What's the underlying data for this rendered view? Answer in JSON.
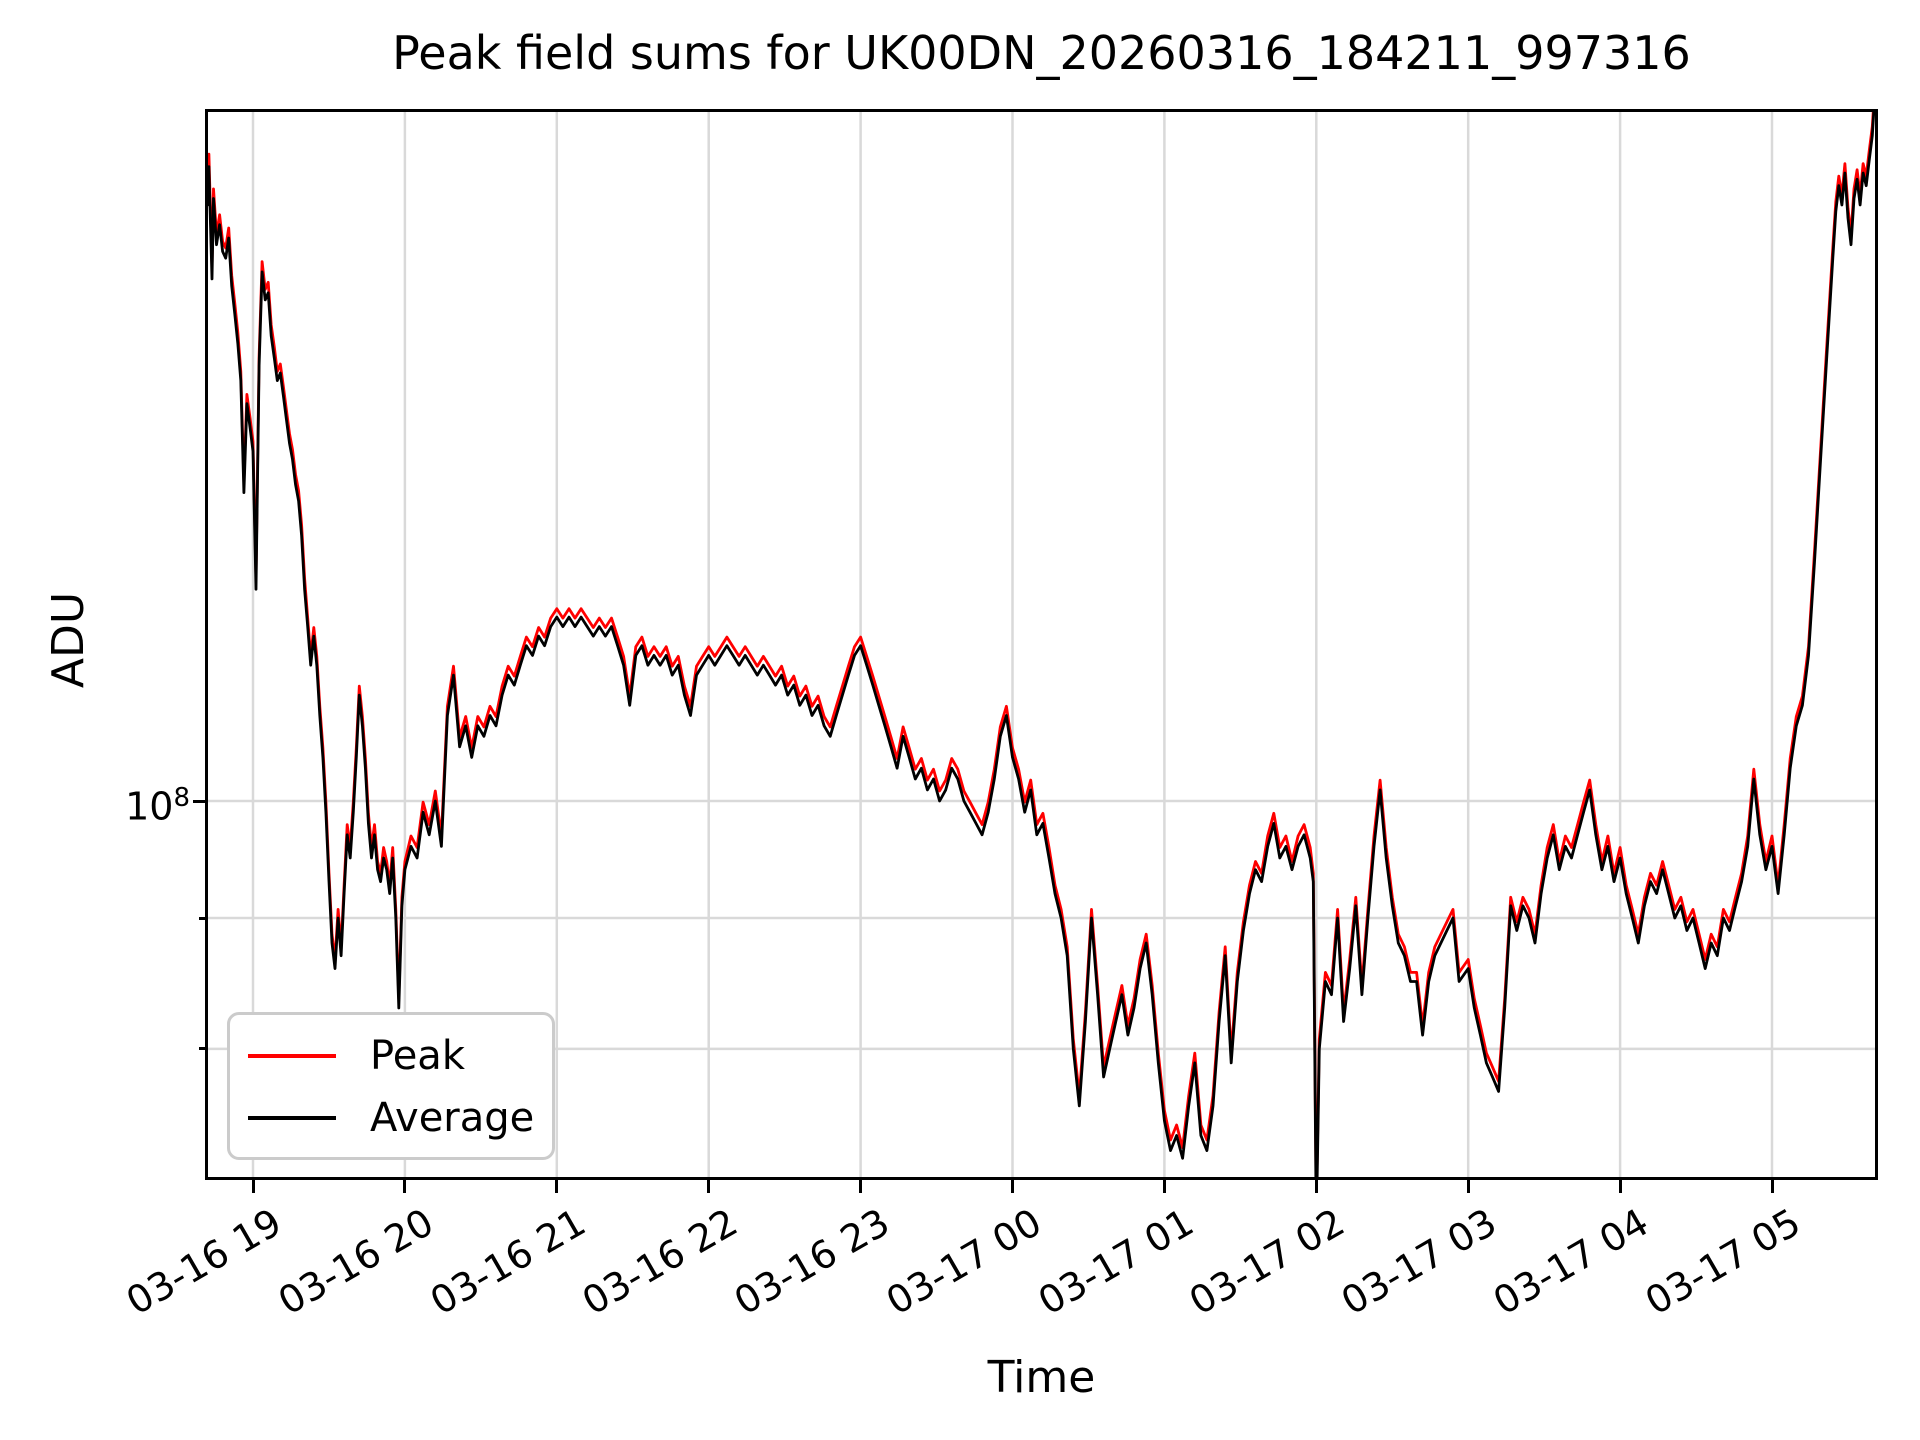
{
  "figure": {
    "title": "Peak field sums for UK00DN_20260316_184211_997316",
    "xlabel": "Time",
    "ylabel": "ADU",
    "y_tick": {
      "base": "10",
      "exponent": "8"
    },
    "background": "#ffffff",
    "grid_color": "#d9d9d9",
    "spine_color": "#000000"
  },
  "legend": {
    "entries": [
      {
        "label": "Peak",
        "color": "#ff0000"
      },
      {
        "label": "Average",
        "color": "#000000"
      }
    ]
  },
  "chart_data": {
    "type": "line",
    "title": "Peak field sums for UK00DN_20260316_184211_997316",
    "xlabel": "Time",
    "ylabel": "ADU",
    "y_scale": "log",
    "grid": true,
    "legend_position": "lower-left",
    "x_unit_note": "hours since 2026-03-16 00:00 (values >24 are 03-17)",
    "value_unit": "1e6 ADU",
    "xlim": [
      18.7,
      29.67
    ],
    "ylim": [
      71300000,
      186000000
    ],
    "x_ticks": [
      {
        "t": 19,
        "label": "03-16 19"
      },
      {
        "t": 20,
        "label": "03-16 20"
      },
      {
        "t": 21,
        "label": "03-16 21"
      },
      {
        "t": 22,
        "label": "03-16 22"
      },
      {
        "t": 23,
        "label": "03-16 23"
      },
      {
        "t": 24,
        "label": "03-17 00"
      },
      {
        "t": 25,
        "label": "03-17 01"
      },
      {
        "t": 26,
        "label": "03-17 02"
      },
      {
        "t": 27,
        "label": "03-17 03"
      },
      {
        "t": 28,
        "label": "03-17 04"
      },
      {
        "t": 29,
        "label": "03-17 05"
      }
    ],
    "y_ticks_major": [
      {
        "value": 100000000,
        "label": "10^8"
      }
    ],
    "y_ticks_minor": [
      90000000,
      80000000
    ],
    "x": [
      18.7,
      18.71,
      18.73,
      18.74,
      18.76,
      18.78,
      18.8,
      18.82,
      18.84,
      18.86,
      18.88,
      18.9,
      18.92,
      18.94,
      18.96,
      18.98,
      19.0,
      19.02,
      19.04,
      19.06,
      19.08,
      19.1,
      19.12,
      19.14,
      19.16,
      19.18,
      19.2,
      19.22,
      19.24,
      19.26,
      19.28,
      19.3,
      19.32,
      19.34,
      19.36,
      19.38,
      19.4,
      19.42,
      19.44,
      19.46,
      19.48,
      19.5,
      19.52,
      19.54,
      19.56,
      19.58,
      19.6,
      19.62,
      19.64,
      19.66,
      19.68,
      19.7,
      19.72,
      19.74,
      19.76,
      19.78,
      19.8,
      19.82,
      19.84,
      19.86,
      19.88,
      19.9,
      19.92,
      19.94,
      19.96,
      19.98,
      20.0,
      20.04,
      20.08,
      20.12,
      20.16,
      20.2,
      20.24,
      20.28,
      20.32,
      20.36,
      20.4,
      20.44,
      20.48,
      20.52,
      20.56,
      20.6,
      20.64,
      20.68,
      20.72,
      20.76,
      20.8,
      20.84,
      20.88,
      20.92,
      20.96,
      21.0,
      21.04,
      21.08,
      21.12,
      21.16,
      21.2,
      21.24,
      21.28,
      21.32,
      21.36,
      21.4,
      21.44,
      21.48,
      21.52,
      21.56,
      21.6,
      21.64,
      21.68,
      21.72,
      21.76,
      21.8,
      21.84,
      21.88,
      21.92,
      21.96,
      22.0,
      22.04,
      22.08,
      22.12,
      22.16,
      22.2,
      22.24,
      22.28,
      22.32,
      22.36,
      22.4,
      22.44,
      22.48,
      22.52,
      22.56,
      22.6,
      22.64,
      22.68,
      22.72,
      22.76,
      22.8,
      22.84,
      22.88,
      22.92,
      22.96,
      23.0,
      23.04,
      23.08,
      23.12,
      23.16,
      23.2,
      23.24,
      23.28,
      23.32,
      23.36,
      23.4,
      23.44,
      23.48,
      23.52,
      23.56,
      23.6,
      23.64,
      23.68,
      23.72,
      23.76,
      23.8,
      23.84,
      23.88,
      23.92,
      23.96,
      24.0,
      24.04,
      24.08,
      24.12,
      24.16,
      24.2,
      24.24,
      24.28,
      24.32,
      24.36,
      24.4,
      24.44,
      24.48,
      24.52,
      24.56,
      24.6,
      24.64,
      24.68,
      24.72,
      24.76,
      24.8,
      24.84,
      24.88,
      24.92,
      24.96,
      25.0,
      25.04,
      25.08,
      25.12,
      25.16,
      25.2,
      25.24,
      25.28,
      25.32,
      25.36,
      25.4,
      25.44,
      25.48,
      25.52,
      25.56,
      25.6,
      25.64,
      25.68,
      25.72,
      25.76,
      25.8,
      25.84,
      25.88,
      25.92,
      25.96,
      25.98,
      26.0,
      26.02,
      26.06,
      26.1,
      26.14,
      26.18,
      26.22,
      26.26,
      26.3,
      26.34,
      26.38,
      26.42,
      26.46,
      26.5,
      26.54,
      26.58,
      26.62,
      26.66,
      26.7,
      26.74,
      26.78,
      26.82,
      26.86,
      26.9,
      26.94,
      27.0,
      27.04,
      27.08,
      27.12,
      27.16,
      27.2,
      27.24,
      27.28,
      27.32,
      27.36,
      27.4,
      27.44,
      27.48,
      27.52,
      27.56,
      27.6,
      27.64,
      27.68,
      27.72,
      27.76,
      27.8,
      27.84,
      27.88,
      27.92,
      27.96,
      28.0,
      28.04,
      28.08,
      28.12,
      28.16,
      28.2,
      28.24,
      28.28,
      28.32,
      28.36,
      28.4,
      28.44,
      28.48,
      28.52,
      28.56,
      28.6,
      28.64,
      28.68,
      28.72,
      28.76,
      28.8,
      28.84,
      28.88,
      28.92,
      28.96,
      29.0,
      29.04,
      29.08,
      29.12,
      29.16,
      29.2,
      29.24,
      29.28,
      29.32,
      29.36,
      29.4,
      29.42,
      29.44,
      29.46,
      29.48,
      29.5,
      29.52,
      29.54,
      29.56,
      29.58,
      29.6,
      29.62,
      29.64,
      29.66,
      29.67
    ],
    "series": [
      {
        "name": "Peak",
        "color": "#ff0000",
        "values": [
          172.5,
          179,
          161.5,
          173.5,
          166.5,
          169.5,
          165.5,
          164.5,
          167.5,
          160.5,
          156.5,
          152.5,
          147.2,
          133.2,
          144.2,
          141.2,
          138.2,
          122.2,
          149.2,
          162.5,
          158.5,
          159.5,
          153.5,
          150.5,
          147.2,
          148.2,
          145.2,
          142.2,
          139.2,
          137.2,
          134.2,
          132.2,
          128.2,
          122.2,
          117.9,
          113.9,
          116.9,
          113.9,
          108.9,
          104.9,
          99.9,
          93.7,
          88.7,
          86.7,
          90.7,
          87.7,
          92.7,
          97.9,
          95.9,
          99.9,
          104.9,
          110.9,
          107.9,
          103.9,
          98.9,
          95.9,
          97.9,
          94.7,
          93.7,
          95.9,
          94.7,
          92.7,
          95.9,
          90.7,
          83.7,
          91.7,
          94.7,
          96.9,
          95.9,
          99.9,
          97.9,
          100.9,
          96.9,
          108.9,
          112.9,
          105.9,
          107.9,
          104.9,
          107.9,
          106.9,
          108.9,
          107.9,
          110.9,
          112.9,
          111.9,
          113.9,
          115.9,
          114.9,
          116.9,
          115.9,
          117.9,
          118.9,
          117.9,
          118.9,
          117.9,
          118.9,
          117.9,
          116.9,
          117.9,
          116.9,
          117.9,
          115.9,
          113.9,
          109.9,
          114.9,
          115.9,
          113.9,
          114.9,
          113.9,
          114.9,
          112.9,
          113.9,
          110.9,
          108.9,
          112.9,
          113.9,
          114.9,
          113.9,
          114.9,
          115.9,
          114.9,
          113.9,
          114.9,
          113.9,
          112.9,
          113.9,
          112.9,
          111.9,
          112.9,
          110.9,
          111.9,
          109.9,
          110.9,
          108.9,
          109.9,
          107.9,
          106.9,
          108.9,
          110.9,
          112.9,
          114.9,
          115.9,
          113.9,
          111.9,
          109.9,
          107.9,
          105.9,
          103.9,
          106.9,
          104.9,
          102.9,
          103.9,
          101.9,
          102.9,
          100.9,
          101.9,
          103.9,
          102.9,
          100.9,
          99.9,
          98.9,
          97.9,
          99.9,
          102.9,
          106.9,
          108.9,
          104.9,
          102.9,
          99.9,
          101.9,
          97.9,
          98.9,
          95.9,
          92.7,
          90.7,
          87.7,
          80.7,
          76.7,
          82.7,
          90.7,
          84.7,
          78.7,
          80.7,
          82.7,
          84.7,
          81.7,
          83.7,
          86.7,
          88.7,
          84.7,
          79.7,
          75.7,
          73.7,
          74.7,
          73.2,
          76.7,
          79.7,
          74.7,
          73.7,
          76.7,
          82.7,
          87.7,
          79.7,
          85.7,
          89.7,
          92.7,
          94.7,
          93.7,
          96.9,
          98.9,
          95.9,
          96.9,
          94.7,
          96.9,
          97.9,
          95.9,
          93.7,
          69,
          80.7,
          85.7,
          84.7,
          90.7,
          82.7,
          86.7,
          91.7,
          84.7,
          90.7,
          96.9,
          101.9,
          95.9,
          91.7,
          88.7,
          87.7,
          85.7,
          85.7,
          81.7,
          85.7,
          87.7,
          88.7,
          89.7,
          90.7,
          85.7,
          86.7,
          83.7,
          81.7,
          79.7,
          78.7,
          77.7,
          83.7,
          91.7,
          89.7,
          91.7,
          90.7,
          88.7,
          92.7,
          95.9,
          97.9,
          94.7,
          96.9,
          95.9,
          97.9,
          99.9,
          101.9,
          97.9,
          94.7,
          96.9,
          93.7,
          95.9,
          92.7,
          90.7,
          88.7,
          91.7,
          93.7,
          92.7,
          94.7,
          92.7,
          90.7,
          91.7,
          89.7,
          90.7,
          88.7,
          86.7,
          88.7,
          87.7,
          90.7,
          89.7,
          91.7,
          93.7,
          96.9,
          102.9,
          97.9,
          94.7,
          96.9,
          92.7,
          97.9,
          103.9,
          107.9,
          109.9,
          114.9,
          125.2,
          137.2,
          150.5,
          164.5,
          171.5,
          175.5,
          172.5,
          177.5,
          170.5,
          166.5,
          173.5,
          176.5,
          172.5,
          177.5,
          175.5,
          179.5,
          183.5,
          187.5
        ]
      },
      {
        "name": "Average",
        "color": "#000000",
        "values": [
          171,
          177,
          160,
          172,
          165,
          168,
          164,
          163,
          166,
          159,
          155,
          151,
          146,
          132,
          143,
          140,
          137,
          121,
          148,
          161,
          157,
          158,
          152,
          149,
          146,
          147,
          144,
          141,
          138,
          136,
          133,
          131,
          127,
          121,
          117,
          113,
          116,
          113,
          108,
          104,
          99,
          93,
          88,
          86,
          90,
          87,
          92,
          97,
          95,
          99,
          104,
          110,
          107,
          103,
          98,
          95,
          97,
          94,
          93,
          95,
          94,
          92,
          95,
          90,
          83,
          91,
          94,
          96,
          95,
          99,
          97,
          100,
          96,
          108,
          112,
          105,
          107,
          104,
          107,
          106,
          108,
          107,
          110,
          112,
          111,
          113,
          115,
          114,
          116,
          115,
          117,
          118,
          117,
          118,
          117,
          118,
          117,
          116,
          117,
          116,
          117,
          115,
          113,
          109,
          114,
          115,
          113,
          114,
          113,
          114,
          112,
          113,
          110,
          108,
          112,
          113,
          114,
          113,
          114,
          115,
          114,
          113,
          114,
          113,
          112,
          113,
          112,
          111,
          112,
          110,
          111,
          109,
          110,
          108,
          109,
          107,
          106,
          108,
          110,
          112,
          114,
          115,
          113,
          111,
          109,
          107,
          105,
          103,
          106,
          104,
          102,
          103,
          101,
          102,
          100,
          101,
          103,
          102,
          100,
          99,
          98,
          97,
          99,
          102,
          106,
          108,
          104,
          102,
          99,
          101,
          97,
          98,
          95,
          92,
          90,
          87,
          80,
          76,
          82,
          90,
          84,
          78,
          80,
          82,
          84,
          81,
          83,
          86,
          88,
          84,
          79,
          75,
          73,
          74,
          72.5,
          76,
          79,
          74,
          73,
          76,
          82,
          87,
          79,
          85,
          89,
          92,
          94,
          93,
          96,
          98,
          95,
          96,
          94,
          96,
          97,
          95,
          93,
          68,
          80,
          85,
          84,
          90,
          82,
          86,
          91,
          84,
          90,
          96,
          101,
          95,
          91,
          88,
          87,
          85,
          85,
          81,
          85,
          87,
          88,
          89,
          90,
          85,
          86,
          83,
          81,
          79,
          78,
          77,
          83,
          91,
          89,
          91,
          90,
          88,
          92,
          95,
          97,
          94,
          96,
          95,
          97,
          99,
          101,
          97,
          94,
          96,
          93,
          95,
          92,
          90,
          88,
          91,
          93,
          92,
          94,
          92,
          90,
          91,
          89,
          90,
          88,
          86,
          88,
          87,
          90,
          89,
          91,
          93,
          96,
          102,
          97,
          94,
          96,
          92,
          97,
          103,
          107,
          109,
          114,
          124,
          136,
          149,
          163,
          170,
          174,
          171,
          176,
          169,
          165,
          172,
          175,
          171,
          176,
          174,
          178,
          182,
          186
        ]
      }
    ]
  }
}
